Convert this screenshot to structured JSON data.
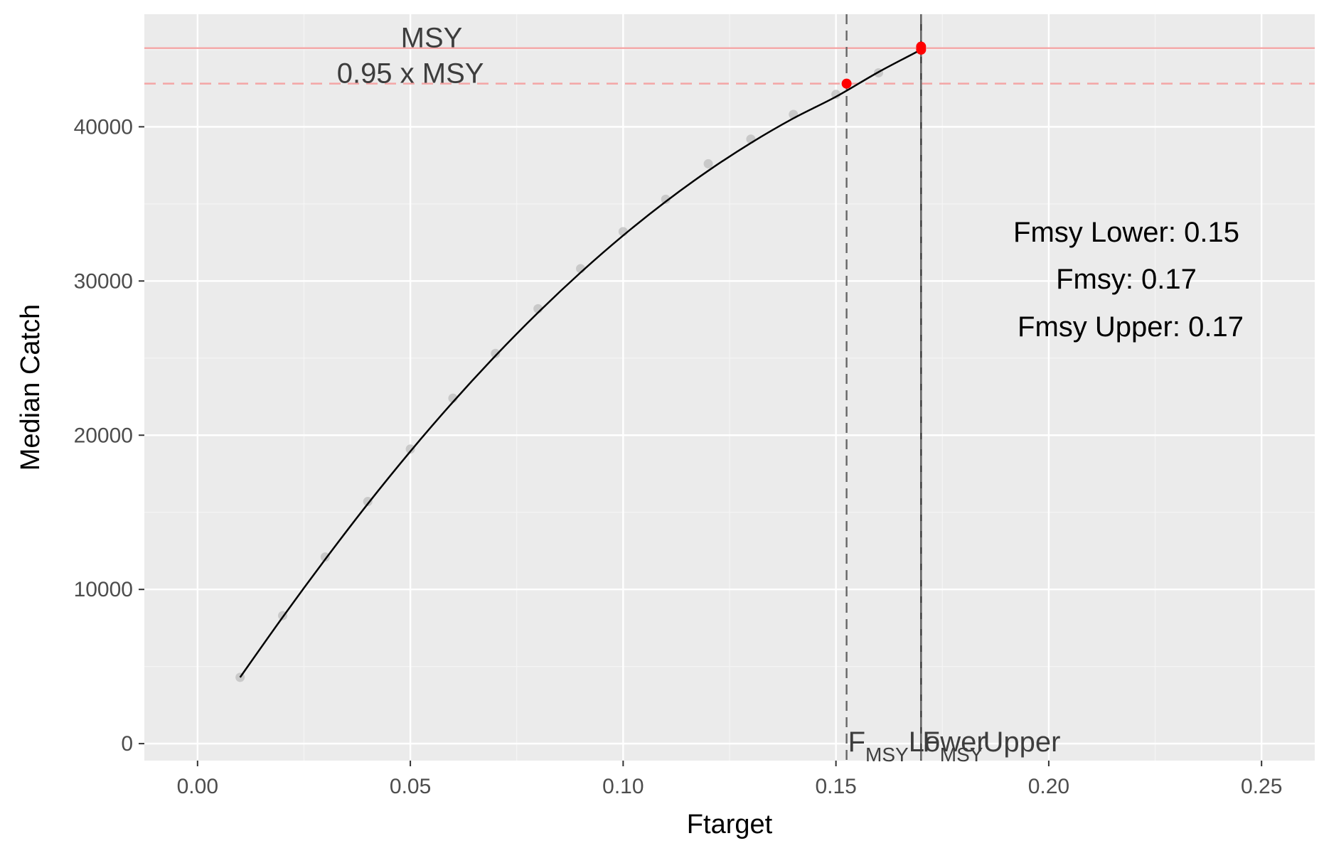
{
  "chart_data": {
    "type": "scatter",
    "xlabel": "Ftarget",
    "ylabel": "Median Catch",
    "xlim": [
      -0.0125,
      0.2625
    ],
    "ylim": [
      -1100,
      47300
    ],
    "x_ticks": [
      0.0,
      0.05,
      0.1,
      0.15,
      0.2,
      0.25
    ],
    "x_tick_labels": [
      "0.00",
      "0.05",
      "0.10",
      "0.15",
      "0.20",
      "0.25"
    ],
    "y_ticks": [
      0,
      10000,
      20000,
      30000,
      40000
    ],
    "y_tick_labels": [
      "0",
      "10000",
      "20000",
      "30000",
      "40000"
    ],
    "grid": true,
    "points": {
      "x": [
        0.01,
        0.02,
        0.03,
        0.04,
        0.05,
        0.06,
        0.07,
        0.08,
        0.09,
        0.1,
        0.11,
        0.12,
        0.13,
        0.14,
        0.15,
        0.16,
        0.17
      ],
      "y": [
        4300,
        8300,
        12100,
        15700,
        19100,
        22400,
        25300,
        28200,
        30800,
        33200,
        35300,
        37600,
        39200,
        40800,
        42100,
        43500,
        45000
      ],
      "color": "#bdbdbd"
    },
    "smooth_curve": {
      "x": [
        0.01,
        0.02,
        0.03,
        0.04,
        0.05,
        0.06,
        0.07,
        0.08,
        0.09,
        0.1,
        0.11,
        0.12,
        0.13,
        0.14,
        0.15,
        0.16,
        0.17
      ],
      "y": [
        4300,
        8200,
        11950,
        15550,
        18950,
        22150,
        25150,
        27950,
        30550,
        32950,
        35150,
        37150,
        38950,
        40550,
        41950,
        43550,
        45000
      ],
      "color": "#000000"
    },
    "reference_lines": {
      "msy": {
        "value": 45100,
        "label": "MSY",
        "color": "#f4a6a6",
        "style": "solid"
      },
      "msy_95": {
        "value": 42800,
        "label": "0.95 x MSY",
        "color": "#f4a6a6",
        "style": "dashed"
      },
      "fmsy_lower": {
        "value": 0.1525,
        "label_main": "F",
        "label_sub": "MSY",
        "label_suffix": "Lower",
        "color": "#666666",
        "style": "dashed"
      },
      "fmsy_upper": {
        "value": 0.17,
        "label_main": "F",
        "label_sub": "MSY",
        "label_suffix": "Upper",
        "color": "#666666",
        "style": "dashed"
      },
      "fmsy": {
        "value": 0.17,
        "color": "#333333",
        "style": "solid"
      }
    },
    "highlight_points": {
      "x": [
        0.1525,
        0.17,
        0.17
      ],
      "y": [
        42800,
        45000,
        45200
      ],
      "color": "#ff0000"
    },
    "annotations": [
      "Fmsy Lower: 0.15",
      "Fmsy: 0.17",
      "Fmsy Upper: 0.17"
    ]
  },
  "colors": {
    "panel_background": "#ebebeb",
    "grid_major": "#ffffff",
    "grid_minor": "#f5f5f5"
  }
}
